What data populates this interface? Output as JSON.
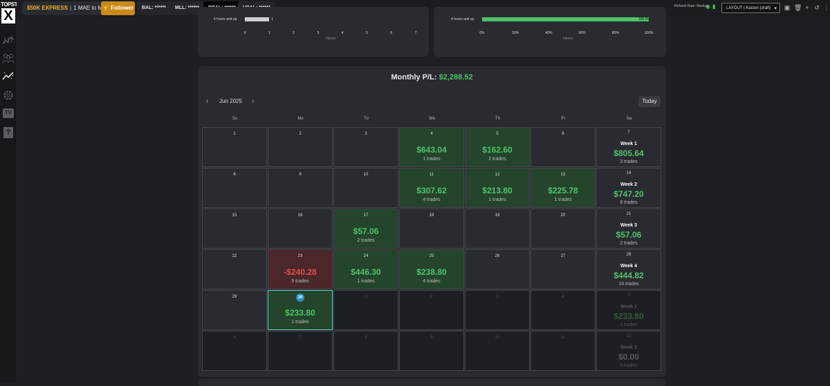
{
  "brand": {
    "top": "TOPSTEP",
    "letter": "X"
  },
  "topbar": {
    "account_name": "$50K EXPRESS",
    "account_sub": "1 MAE to M...",
    "follower_label": "Follower",
    "bal": "BAL: ******",
    "mll": "MLL: ******",
    "rpl": "RP&L: ******",
    "upl": "UP&L: ******",
    "refresh": "Refresh Rate: Medium",
    "layout": "LAYOUT | Kaizen (draft)"
  },
  "left_chart": {
    "row_label": "4 hours and up",
    "bar_value": "1",
    "ticks": [
      "0",
      "1",
      "2",
      "3",
      "4",
      "5",
      "6",
      "7"
    ],
    "axis_title": "Values",
    "bar_fraction": 0.143
  },
  "right_chart": {
    "row_label": "4 hours and up",
    "bar_value": "100.0%",
    "ticks": [
      "0%",
      "20%",
      "40%",
      "60%",
      "80%",
      "100%"
    ],
    "axis_title": "Values",
    "bar_fraction": 1.0
  },
  "calendar": {
    "monthly_label": "Monthly P/L:",
    "monthly_value": "$2,288.52",
    "month": "Jun 2025",
    "today_label": "Today",
    "days_of_week": [
      "Su",
      "Mo",
      "Tu",
      "We",
      "Th",
      "Fr",
      "Sa"
    ],
    "weeks": [
      {
        "days": [
          {
            "d": "1"
          },
          {
            "d": "2"
          },
          {
            "d": "3"
          },
          {
            "d": "4",
            "amt": "$643.04",
            "trades": "1 trades",
            "kind": "win"
          },
          {
            "d": "5",
            "amt": "$162.60",
            "trades": "2 trades",
            "kind": "win"
          },
          {
            "d": "6"
          }
        ],
        "sat": {
          "d": "7",
          "week": "Week 1",
          "amt": "$805.64",
          "trades": "3 trades"
        }
      },
      {
        "days": [
          {
            "d": "8"
          },
          {
            "d": "9"
          },
          {
            "d": "10"
          },
          {
            "d": "11",
            "amt": "$307.62",
            "trades": "4 trades",
            "kind": "win"
          },
          {
            "d": "12",
            "amt": "$213.80",
            "trades": "1 trades",
            "kind": "win"
          },
          {
            "d": "13",
            "amt": "$225.78",
            "trades": "1 trades",
            "kind": "win"
          }
        ],
        "sat": {
          "d": "14",
          "week": "Week 2",
          "amt": "$747.20",
          "trades": "6 trades"
        }
      },
      {
        "days": [
          {
            "d": "15"
          },
          {
            "d": "16"
          },
          {
            "d": "17",
            "amt": "$57.06",
            "trades": "2 trades",
            "kind": "win"
          },
          {
            "d": "18"
          },
          {
            "d": "19"
          },
          {
            "d": "20"
          }
        ],
        "sat": {
          "d": "21",
          "week": "Week 3",
          "amt": "$57.06",
          "trades": "2 trades"
        }
      },
      {
        "days": [
          {
            "d": "22"
          },
          {
            "d": "23",
            "amt": "-$240.28",
            "trades": "5 trades",
            "kind": "loss"
          },
          {
            "d": "24",
            "amt": "$446.30",
            "trades": "1 trades",
            "kind": "win"
          },
          {
            "d": "25",
            "amt": "$238.80",
            "trades": "4 trades",
            "kind": "win"
          },
          {
            "d": "26"
          },
          {
            "d": "27"
          }
        ],
        "sat": {
          "d": "28",
          "week": "Week 4",
          "amt": "$444.82",
          "trades": "10 trades"
        }
      },
      {
        "days": [
          {
            "d": "29"
          },
          {
            "d": "30",
            "amt": "$233.80",
            "trades": "1 trades",
            "kind": "today"
          },
          {
            "d": "1",
            "kind": "off"
          },
          {
            "d": "2",
            "kind": "off"
          },
          {
            "d": "3",
            "kind": "off"
          },
          {
            "d": "4",
            "kind": "off"
          }
        ],
        "sat": {
          "d": "5",
          "week": "Week 1",
          "amt": "$233.80",
          "trades": "1 trades",
          "kind": "dim"
        }
      },
      {
        "days": [
          {
            "d": "6",
            "kind": "off"
          },
          {
            "d": "7",
            "kind": "off"
          },
          {
            "d": "8",
            "kind": "off"
          },
          {
            "d": "9",
            "kind": "off"
          },
          {
            "d": "10",
            "kind": "off"
          },
          {
            "d": "11",
            "kind": "off"
          }
        ],
        "sat": {
          "d": "12",
          "week": "Week 2",
          "amt": "$0.00",
          "trades": "0 trades",
          "kind": "dim2"
        }
      }
    ]
  }
}
